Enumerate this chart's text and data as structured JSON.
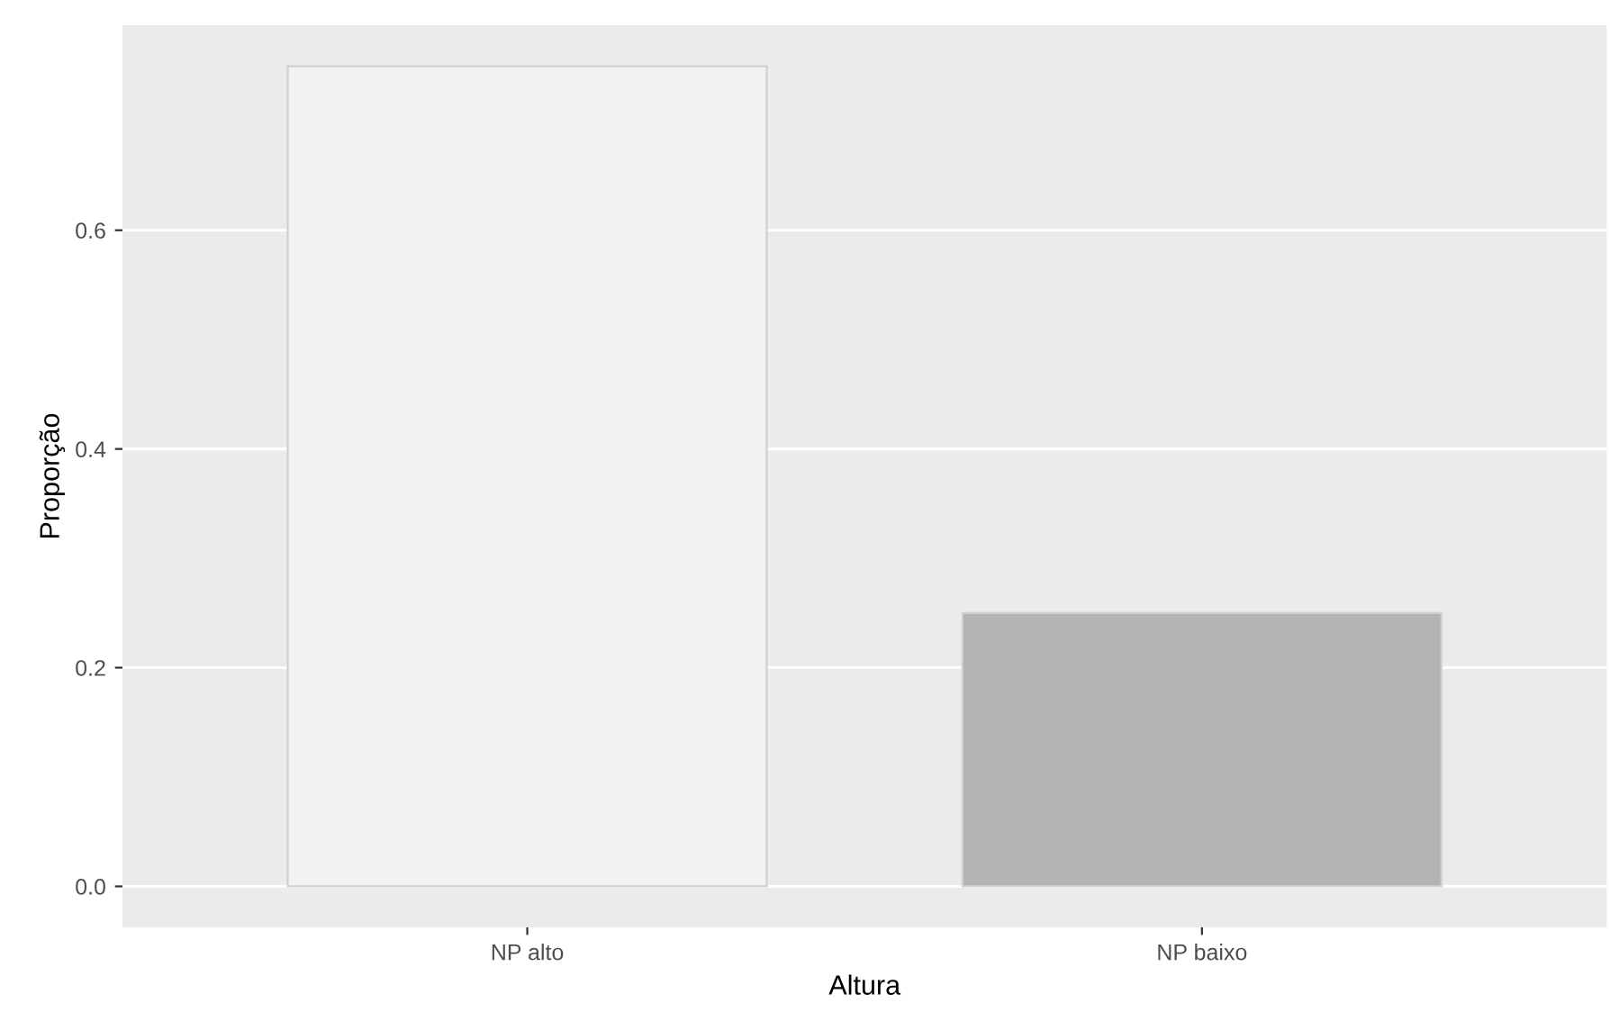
{
  "chart_data": {
    "type": "bar",
    "xlabel": "Altura",
    "ylabel": "Proporção",
    "categories": [
      "NP alto",
      "NP baixo"
    ],
    "values": [
      0.75,
      0.25
    ],
    "colors": [
      "#f2f2f2",
      "#b3b3b3"
    ],
    "ylim": [
      -0.0375,
      0.7875
    ],
    "yticks": [
      {
        "value": 0,
        "label": "0.0"
      },
      0.2,
      0.4,
      0.6
    ],
    "grid": "y"
  }
}
